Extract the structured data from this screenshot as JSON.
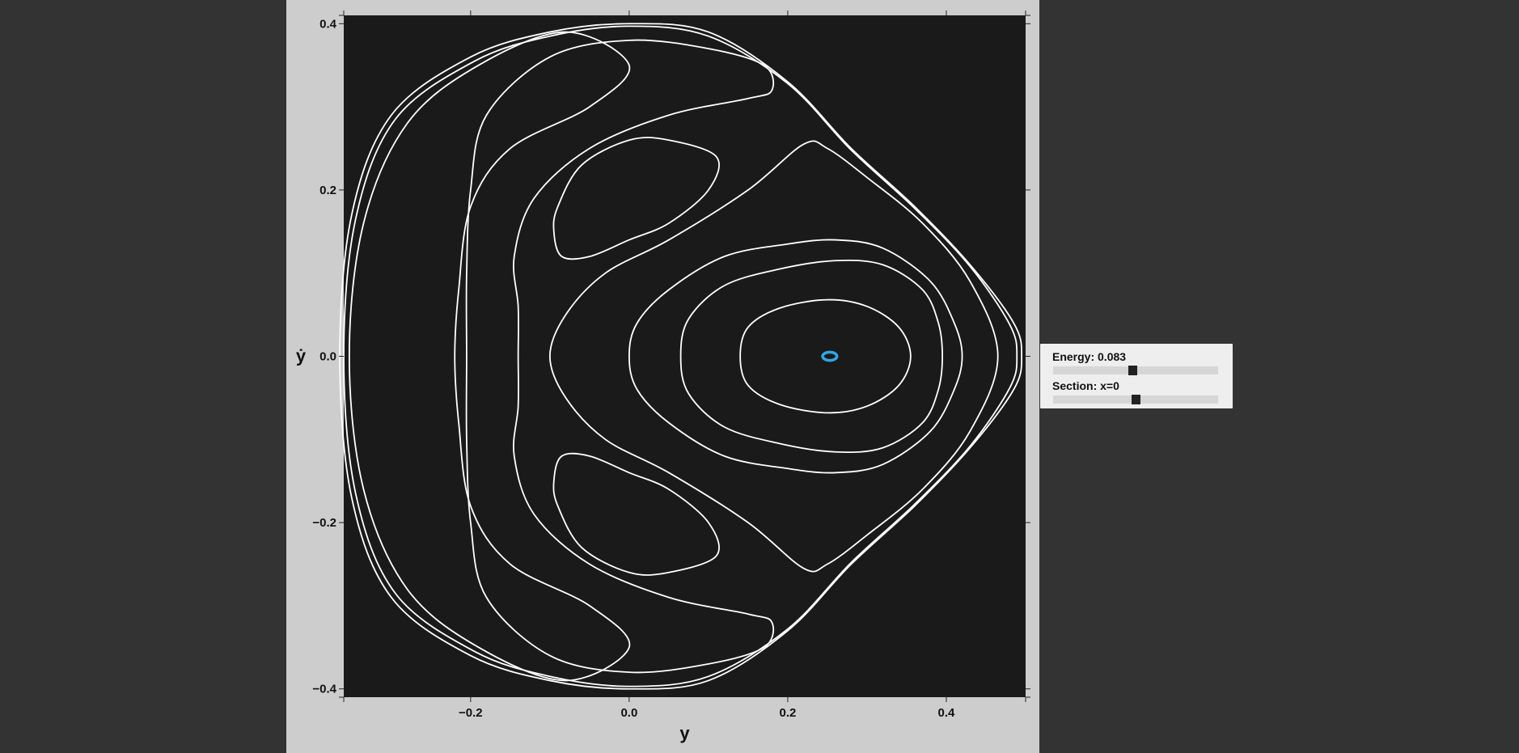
{
  "chart_data": {
    "type": "line",
    "title": "",
    "xlabel": "y",
    "ylabel": "ẏ",
    "xlim": [
      -0.36,
      0.5
    ],
    "ylim": [
      -0.41,
      0.41
    ],
    "xticks": [
      -0.2,
      0.0,
      0.2,
      0.4
    ],
    "xtick_labels": [
      "−0.2",
      "0.0",
      "0.2",
      "0.4"
    ],
    "yticks": [
      0.4,
      0.2,
      0.0,
      -0.2,
      -0.4
    ],
    "ytick_labels": [
      "0.4",
      "0.2",
      "0.0",
      "−0.2",
      "−0.4"
    ],
    "grid": false,
    "background": "#1a1a1a",
    "orbit_color": "#ffffff",
    "highlight_color": "#2fa6e6",
    "series": [
      {
        "values": [
          [
            -0.365,
            0.0
          ],
          [
            -0.35,
            0.17
          ],
          [
            -0.3,
            0.29
          ],
          [
            -0.2,
            0.36
          ],
          [
            -0.1,
            0.39
          ],
          [
            0.0,
            0.4
          ],
          [
            0.1,
            0.39
          ],
          [
            0.2,
            0.33
          ],
          [
            0.28,
            0.25
          ],
          [
            0.36,
            0.18
          ],
          [
            0.43,
            0.11
          ],
          [
            0.485,
            0.04
          ],
          [
            0.495,
            0.0
          ],
          [
            0.485,
            -0.04
          ],
          [
            0.43,
            -0.11
          ],
          [
            0.36,
            -0.18
          ],
          [
            0.28,
            -0.25
          ],
          [
            0.2,
            -0.33
          ],
          [
            0.1,
            -0.39
          ],
          [
            0.0,
            -0.4
          ],
          [
            -0.1,
            -0.39
          ],
          [
            -0.2,
            -0.36
          ],
          [
            -0.3,
            -0.29
          ],
          [
            -0.35,
            -0.17
          ],
          [
            -0.365,
            0.0
          ]
        ]
      },
      {
        "values": [
          [
            -0.36,
            0.0
          ],
          [
            -0.345,
            0.165
          ],
          [
            -0.295,
            0.285
          ],
          [
            -0.195,
            0.355
          ],
          [
            -0.1,
            0.385
          ],
          [
            0.0,
            0.397
          ],
          [
            0.1,
            0.385
          ],
          [
            0.2,
            0.328
          ],
          [
            0.28,
            0.248
          ],
          [
            0.36,
            0.178
          ],
          [
            0.43,
            0.108
          ],
          [
            0.48,
            0.038
          ],
          [
            0.489,
            0.0
          ],
          [
            0.48,
            -0.038
          ],
          [
            0.43,
            -0.108
          ],
          [
            0.36,
            -0.178
          ],
          [
            0.28,
            -0.248
          ],
          [
            0.2,
            -0.328
          ],
          [
            0.1,
            -0.385
          ],
          [
            0.0,
            -0.397
          ],
          [
            -0.1,
            -0.385
          ],
          [
            -0.195,
            -0.355
          ],
          [
            -0.295,
            -0.285
          ],
          [
            -0.345,
            -0.165
          ],
          [
            -0.36,
            0.0
          ]
        ]
      },
      {
        "values": [
          [
            -0.353,
            0.0
          ],
          [
            -0.335,
            0.16
          ],
          [
            -0.28,
            0.28
          ],
          [
            -0.19,
            0.35
          ],
          [
            -0.08,
            0.39
          ],
          [
            0.0,
            0.35
          ],
          [
            -0.05,
            0.3
          ],
          [
            -0.15,
            0.25
          ],
          [
            -0.2,
            0.18
          ],
          [
            -0.215,
            0.08
          ],
          [
            -0.22,
            0.0
          ],
          [
            -0.215,
            -0.08
          ],
          [
            -0.2,
            -0.18
          ],
          [
            -0.15,
            -0.25
          ],
          [
            -0.05,
            -0.3
          ],
          [
            0.0,
            -0.35
          ],
          [
            -0.08,
            -0.39
          ],
          [
            -0.19,
            -0.35
          ],
          [
            -0.28,
            -0.28
          ],
          [
            -0.335,
            -0.16
          ],
          [
            -0.353,
            0.0
          ]
        ]
      },
      {
        "values": [
          [
            -0.14,
            0.0
          ],
          [
            -0.14,
            0.06
          ],
          [
            -0.145,
            0.12
          ],
          [
            -0.12,
            0.19
          ],
          [
            -0.05,
            0.25
          ],
          [
            0.05,
            0.29
          ],
          [
            0.15,
            0.31
          ],
          [
            0.18,
            0.32
          ],
          [
            0.17,
            0.35
          ],
          [
            0.1,
            0.37
          ],
          [
            0.0,
            0.38
          ],
          [
            -0.1,
            0.36
          ],
          [
            -0.18,
            0.29
          ],
          [
            -0.2,
            0.2
          ],
          [
            -0.205,
            0.1
          ],
          [
            -0.205,
            0.0
          ],
          [
            -0.205,
            -0.1
          ],
          [
            -0.2,
            -0.2
          ],
          [
            -0.18,
            -0.29
          ],
          [
            -0.1,
            -0.36
          ],
          [
            0.0,
            -0.38
          ],
          [
            0.1,
            -0.37
          ],
          [
            0.17,
            -0.35
          ],
          [
            0.18,
            -0.32
          ],
          [
            0.15,
            -0.31
          ],
          [
            0.05,
            -0.29
          ],
          [
            -0.05,
            -0.25
          ],
          [
            -0.12,
            -0.19
          ],
          [
            -0.145,
            -0.12
          ],
          [
            -0.14,
            -0.06
          ],
          [
            -0.14,
            0.0
          ]
        ]
      },
      {
        "values": [
          [
            -0.1,
            0.0
          ],
          [
            -0.08,
            0.05
          ],
          [
            -0.03,
            0.1
          ],
          [
            0.05,
            0.14
          ],
          [
            0.15,
            0.2
          ],
          [
            0.22,
            0.255
          ],
          [
            0.25,
            0.25
          ],
          [
            0.3,
            0.215
          ],
          [
            0.37,
            0.16
          ],
          [
            0.43,
            0.09
          ],
          [
            0.465,
            0.0
          ],
          [
            0.43,
            -0.09
          ],
          [
            0.37,
            -0.16
          ],
          [
            0.3,
            -0.215
          ],
          [
            0.25,
            -0.25
          ],
          [
            0.22,
            -0.255
          ],
          [
            0.15,
            -0.2
          ],
          [
            0.05,
            -0.14
          ],
          [
            -0.03,
            -0.1
          ],
          [
            -0.08,
            -0.05
          ],
          [
            -0.1,
            0.0
          ]
        ]
      },
      {
        "values": [
          [
            0.0,
            0.0
          ],
          [
            0.01,
            0.04
          ],
          [
            0.05,
            0.08
          ],
          [
            0.12,
            0.12
          ],
          [
            0.2,
            0.135
          ],
          [
            0.26,
            0.14
          ],
          [
            0.32,
            0.13
          ],
          [
            0.38,
            0.09
          ],
          [
            0.41,
            0.04
          ],
          [
            0.42,
            0.0
          ],
          [
            0.41,
            -0.04
          ],
          [
            0.38,
            -0.09
          ],
          [
            0.32,
            -0.13
          ],
          [
            0.26,
            -0.14
          ],
          [
            0.2,
            -0.135
          ],
          [
            0.12,
            -0.12
          ],
          [
            0.05,
            -0.08
          ],
          [
            0.01,
            -0.04
          ],
          [
            0.0,
            0.0
          ]
        ]
      },
      {
        "values": [
          [
            0.065,
            0.0
          ],
          [
            0.075,
            0.045
          ],
          [
            0.12,
            0.085
          ],
          [
            0.19,
            0.105
          ],
          [
            0.26,
            0.115
          ],
          [
            0.32,
            0.11
          ],
          [
            0.37,
            0.08
          ],
          [
            0.39,
            0.04
          ],
          [
            0.395,
            0.0
          ],
          [
            0.39,
            -0.04
          ],
          [
            0.37,
            -0.08
          ],
          [
            0.32,
            -0.11
          ],
          [
            0.26,
            -0.115
          ],
          [
            0.19,
            -0.105
          ],
          [
            0.12,
            -0.085
          ],
          [
            0.075,
            -0.045
          ],
          [
            0.065,
            0.0
          ]
        ]
      },
      {
        "values": [
          [
            0.14,
            0.0
          ],
          [
            0.15,
            0.035
          ],
          [
            0.19,
            0.058
          ],
          [
            0.25,
            0.068
          ],
          [
            0.3,
            0.06
          ],
          [
            0.34,
            0.035
          ],
          [
            0.355,
            0.0
          ],
          [
            0.34,
            -0.035
          ],
          [
            0.3,
            -0.06
          ],
          [
            0.25,
            -0.068
          ],
          [
            0.19,
            -0.058
          ],
          [
            0.15,
            -0.035
          ],
          [
            0.14,
            0.0
          ]
        ]
      },
      {
        "values": [
          [
            -0.09,
            0.18
          ],
          [
            -0.06,
            0.23
          ],
          [
            0.0,
            0.26
          ],
          [
            0.05,
            0.26
          ],
          [
            0.11,
            0.24
          ],
          [
            0.1,
            0.2
          ],
          [
            0.05,
            0.16
          ],
          [
            0.0,
            0.14
          ],
          [
            -0.05,
            0.12
          ],
          [
            -0.085,
            0.12
          ],
          [
            -0.095,
            0.15
          ],
          [
            -0.09,
            0.18
          ]
        ]
      },
      {
        "values": [
          [
            -0.09,
            -0.18
          ],
          [
            -0.06,
            -0.23
          ],
          [
            0.0,
            -0.26
          ],
          [
            0.05,
            -0.26
          ],
          [
            0.11,
            -0.24
          ],
          [
            0.1,
            -0.2
          ],
          [
            0.05,
            -0.16
          ],
          [
            0.0,
            -0.14
          ],
          [
            -0.05,
            -0.12
          ],
          [
            -0.085,
            -0.12
          ],
          [
            -0.095,
            -0.15
          ],
          [
            -0.09,
            -0.18
          ]
        ]
      }
    ],
    "highlight": {
      "center": [
        0.253,
        0.0
      ],
      "rx": 0.009,
      "ry": 0.005
    }
  },
  "controls": {
    "energy_label": "Energy: 0.083",
    "energy_value": 0.083,
    "energy_slider_fraction": 0.48,
    "section_label": "Section: x=0",
    "section_slider_fraction": 0.5
  }
}
